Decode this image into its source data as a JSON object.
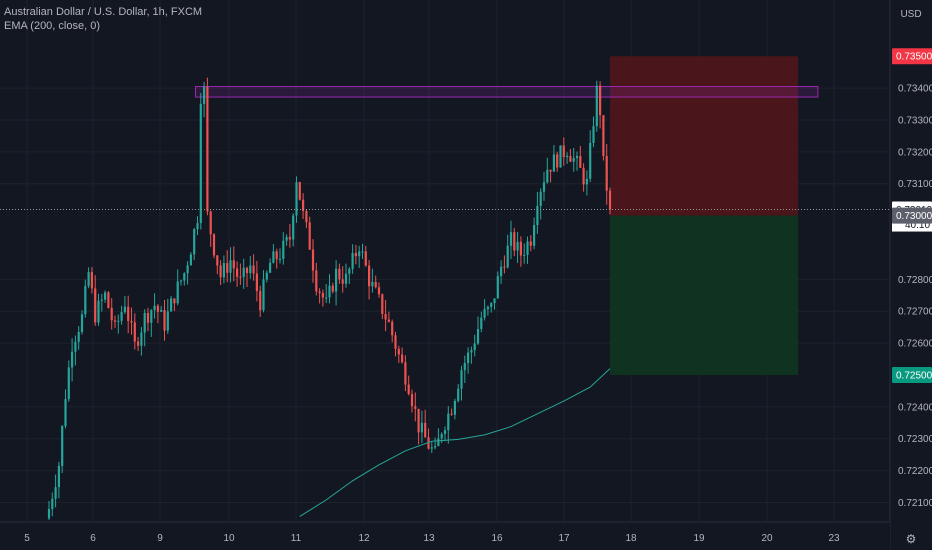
{
  "header": {
    "symbol_title": "Australian Dollar / U.S. Dollar, 1h, FXCM",
    "indicator_label": "EMA (200, close, 0)"
  },
  "colors": {
    "background": "#131722",
    "grid": "#1e222d",
    "up_candle": "#26a69a",
    "down_candle": "#ef5350",
    "ema_line": "#26a69a",
    "stop_zone": "#4a161c",
    "target_zone": "#0f3320",
    "resistance_box": "#9c27b0",
    "axis_text": "#b2b5be"
  },
  "chart_data": {
    "type": "candlestick",
    "x_axis": {
      "ticks": [
        "5",
        "6",
        "9",
        "10",
        "11",
        "12",
        "13",
        "16",
        "17",
        "18",
        "19",
        "20",
        "23"
      ]
    },
    "y_axis": {
      "ticks": [
        "0.72100",
        "0.72200",
        "0.72300",
        "0.72400",
        "0.72600",
        "0.72700",
        "0.72800",
        "0.73100",
        "0.73200",
        "0.73300",
        "0.73400"
      ],
      "ylim": [
        0.7207,
        0.7362
      ],
      "currency": "USD"
    },
    "price_labels": [
      {
        "text": "0.73500",
        "value": 0.735,
        "color": "#f23645",
        "kind": "stop"
      },
      {
        "text": "0.73019",
        "value": 0.73019,
        "color": "#ffffff",
        "kind": "last_price",
        "countdown": "40:10"
      },
      {
        "text": "0.73000",
        "value": 0.73,
        "color": "#5d606b",
        "kind": "entry"
      },
      {
        "text": "0.72500",
        "value": 0.725,
        "color": "#089981",
        "kind": "target"
      }
    ],
    "position": {
      "side": "short",
      "entry": 0.73,
      "stop": 0.735,
      "target": 0.725,
      "start_bar": 170,
      "end_bar": 227
    },
    "resistance_zone": {
      "from": 0.73372,
      "to": 0.73405,
      "start_bar": 45,
      "end_bar": 233
    },
    "last_price": 0.73019,
    "ema_period": 200,
    "ema_series": [
      [
        76,
        0.72056
      ],
      [
        84,
        0.72108
      ],
      [
        92,
        0.72168
      ],
      [
        100,
        0.72218
      ],
      [
        108,
        0.72262
      ],
      [
        116,
        0.72292
      ],
      [
        124,
        0.72298
      ],
      [
        132,
        0.72312
      ],
      [
        140,
        0.72338
      ],
      [
        148,
        0.72378
      ],
      [
        156,
        0.72418
      ],
      [
        164,
        0.72462
      ],
      [
        170,
        0.7252
      ]
    ],
    "price_path": [
      [
        0,
        0.7208
      ],
      [
        3,
        0.7222
      ],
      [
        5,
        0.7244
      ],
      [
        7,
        0.726
      ],
      [
        10,
        0.7268
      ],
      [
        12,
        0.7282
      ],
      [
        14,
        0.7269
      ],
      [
        17,
        0.7275
      ],
      [
        20,
        0.7264
      ],
      [
        23,
        0.7273
      ],
      [
        26,
        0.7259
      ],
      [
        29,
        0.7268
      ],
      [
        32,
        0.7272
      ],
      [
        35,
        0.7266
      ],
      [
        38,
        0.7275
      ],
      [
        41,
        0.7282
      ],
      [
        43,
        0.729
      ],
      [
        45,
        0.73
      ],
      [
        46,
        0.7338
      ],
      [
        47,
        0.7339
      ],
      [
        48,
        0.73
      ],
      [
        50,
        0.729
      ],
      [
        52,
        0.7281
      ],
      [
        55,
        0.7286
      ],
      [
        58,
        0.7279
      ],
      [
        61,
        0.7284
      ],
      [
        64,
        0.7273
      ],
      [
        67,
        0.7285
      ],
      [
        70,
        0.7288
      ],
      [
        73,
        0.7293
      ],
      [
        75,
        0.7312
      ],
      [
        77,
        0.73
      ],
      [
        79,
        0.7291
      ],
      [
        81,
        0.7279
      ],
      [
        84,
        0.7272
      ],
      [
        87,
        0.7282
      ],
      [
        90,
        0.728
      ],
      [
        94,
        0.7291
      ],
      [
        97,
        0.728
      ],
      [
        100,
        0.7273
      ],
      [
        103,
        0.7266
      ],
      [
        106,
        0.7256
      ],
      [
        109,
        0.7247
      ],
      [
        112,
        0.7234
      ],
      [
        115,
        0.7228
      ],
      [
        117,
        0.7225
      ],
      [
        119,
        0.7233
      ],
      [
        122,
        0.724
      ],
      [
        125,
        0.7252
      ],
      [
        128,
        0.7258
      ],
      [
        131,
        0.7268
      ],
      [
        134,
        0.7271
      ],
      [
        137,
        0.7284
      ],
      [
        140,
        0.7292
      ],
      [
        143,
        0.7288
      ],
      [
        146,
        0.7293
      ],
      [
        148,
        0.7306
      ],
      [
        151,
        0.7315
      ],
      [
        154,
        0.7318
      ],
      [
        157,
        0.7321
      ],
      [
        160,
        0.7316
      ],
      [
        163,
        0.731
      ],
      [
        165,
        0.733
      ],
      [
        166,
        0.7339
      ],
      [
        167,
        0.7333
      ],
      [
        168,
        0.7316
      ],
      [
        170,
        0.73019
      ]
    ],
    "pixel_mapping": {
      "first_bar_x": 49,
      "bar_spacing": 3.3
    }
  }
}
